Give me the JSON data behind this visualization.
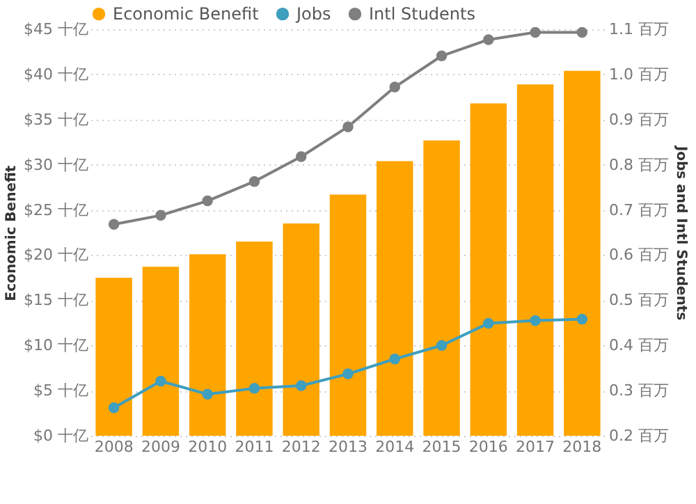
{
  "chart_data": {
    "type": "bar",
    "categories": [
      "2008",
      "2009",
      "2010",
      "2011",
      "2012",
      "2013",
      "2014",
      "2015",
      "2016",
      "2017",
      "2018"
    ],
    "series": [
      {
        "name": "Economic Benefit",
        "color": "#ffa500",
        "values": [
          17.5,
          18.7,
          20.1,
          21.5,
          23.5,
          26.7,
          30.4,
          32.7,
          36.8,
          38.9,
          40.4
        ]
      },
      {
        "name": "Jobs",
        "type": "line",
        "axis": "y2",
        "color": "#3e9fbf",
        "values": [
          0.262,
          0.321,
          0.292,
          0.305,
          0.311,
          0.337,
          0.37,
          0.4,
          0.449,
          0.455,
          0.458
        ]
      },
      {
        "name": "Intl Students",
        "type": "line",
        "axis": "y2",
        "color": "#7f7f7f",
        "values": [
          0.668,
          0.688,
          0.72,
          0.763,
          0.818,
          0.884,
          0.972,
          1.041,
          1.077,
          1.093,
          1.093
        ]
      }
    ],
    "ylabel": "Economic Benefit",
    "y2label": "Jobs and Intl Students",
    "ylim": [
      0,
      45
    ],
    "yticks": [
      {
        "value": 0,
        "label": "$0 十亿"
      },
      {
        "value": 5,
        "label": "$5 十亿"
      },
      {
        "value": 10,
        "label": "$10 十亿"
      },
      {
        "value": 15,
        "label": "$15 十亿"
      },
      {
        "value": 20,
        "label": "$20 十亿"
      },
      {
        "value": 25,
        "label": "$25 十亿"
      },
      {
        "value": 30,
        "label": "$30 十亿"
      },
      {
        "value": 35,
        "label": "$35 十亿"
      },
      {
        "value": 40,
        "label": "$40 十亿"
      },
      {
        "value": 45,
        "label": "$45 十亿"
      }
    ],
    "y2lim": [
      0.2,
      1.1
    ],
    "y2ticks": [
      {
        "value": 0.2,
        "label": "0.2 百万"
      },
      {
        "value": 0.3,
        "label": "0.3 百万"
      },
      {
        "value": 0.4,
        "label": "0.4 百万"
      },
      {
        "value": 0.5,
        "label": "0.5 百万"
      },
      {
        "value": 0.6,
        "label": "0.6 百万"
      },
      {
        "value": 0.7,
        "label": "0.7 百万"
      },
      {
        "value": 0.8,
        "label": "0.8 百万"
      },
      {
        "value": 0.9,
        "label": "0.9 百万"
      },
      {
        "value": 1.0,
        "label": "1.0 百万"
      },
      {
        "value": 1.1,
        "label": "1.1 百万"
      }
    ],
    "grid": "y",
    "legend": "top left",
    "marker": "circle",
    "line_style": "solid"
  }
}
